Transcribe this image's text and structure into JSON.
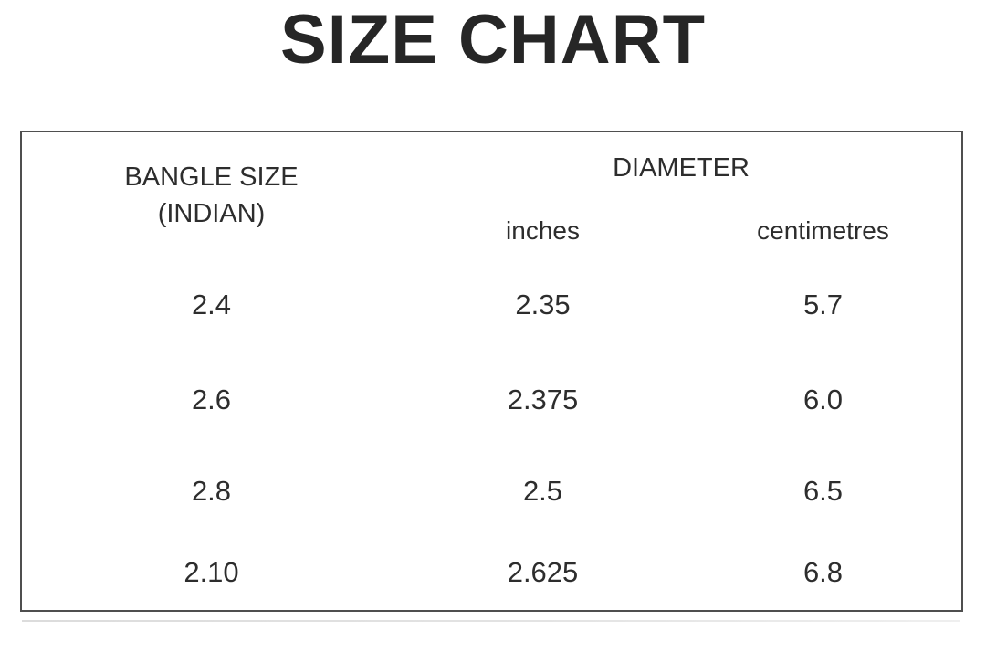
{
  "page": {
    "title": "SIZE CHART"
  },
  "chart_data": {
    "type": "table",
    "title": "SIZE CHART",
    "header": {
      "bangle_line1": "BANGLE SIZE",
      "bangle_line2": "(INDIAN)",
      "diameter": "DIAMETER",
      "inches": "inches",
      "centimetres": "centimetres"
    },
    "columns": [
      "BANGLE SIZE (INDIAN)",
      "DIAMETER — inches",
      "DIAMETER — centimetres"
    ],
    "rows": [
      {
        "size": "2.4",
        "inches": "2.35",
        "cm": "5.7"
      },
      {
        "size": "2.6",
        "inches": "2.375",
        "cm": "6.0"
      },
      {
        "size": "2.8",
        "inches": "2.5",
        "cm": "6.5"
      },
      {
        "size": "2.10",
        "inches": "2.625",
        "cm": "6.8"
      }
    ],
    "layout": {
      "header_rows": 2,
      "body_rows": 4,
      "grid": "on",
      "diameter_group_span": 2
    }
  },
  "colors": {
    "background": "#ffffff",
    "text": "#2d2d2d",
    "border_dark": "#4f4f4f",
    "border_light": "#a9a9a9",
    "header_separator": "#6f6f6f"
  }
}
